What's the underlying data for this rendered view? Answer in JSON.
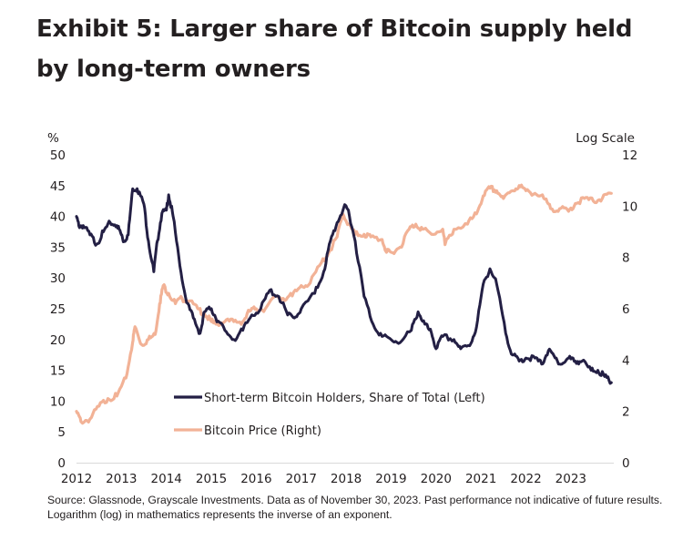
{
  "title": "Exhibit 5: Larger share of Bitcoin supply held by long-term owners",
  "source": "Source: Glassnode, Grayscale Investments. Data as of November 30, 2023. Past performance not indicative of future results. Logarithm (log) in mathematics represents the inverse of an exponent.",
  "colors": {
    "sth_share": "#231f44",
    "price": "#f2b296",
    "axis_line": "#d9d9d9",
    "text": "#231f20"
  },
  "chart_data": {
    "type": "line",
    "title": "Exhibit 5: Larger share of Bitcoin supply held by long-term owners",
    "xlabel": "",
    "ylabel_left": "%",
    "ylabel_right": "Log Scale",
    "x_ticks": [
      "2012",
      "2013",
      "2014",
      "2015",
      "2016",
      "2017",
      "2018",
      "2019",
      "2020",
      "2021",
      "2022",
      "2023"
    ],
    "xlim": [
      2012,
      2023.92
    ],
    "ylim_left": [
      0,
      50
    ],
    "ylim_right": [
      0,
      12
    ],
    "y_ticks_left": [
      "0",
      "5",
      "10",
      "15",
      "20",
      "25",
      "30",
      "35",
      "40",
      "45",
      "50"
    ],
    "y_ticks_right": [
      "0",
      "2",
      "4",
      "6",
      "8",
      "10",
      "12"
    ],
    "grid": false,
    "legend_position": "bottom-center",
    "series": [
      {
        "name": "Short-term Bitcoin Holders, Share of Total (Left)",
        "axis": "left",
        "x": [
          2012.0,
          2012.05,
          2012.15,
          2012.3,
          2012.45,
          2012.6,
          2012.75,
          2012.9,
          2013.0,
          2013.05,
          2013.15,
          2013.25,
          2013.35,
          2013.5,
          2013.6,
          2013.72,
          2013.8,
          2013.9,
          2014.0,
          2014.05,
          2014.15,
          2014.3,
          2014.45,
          2014.6,
          2014.75,
          2014.85,
          2015.0,
          2015.15,
          2015.3,
          2015.5,
          2015.7,
          2015.9,
          2016.1,
          2016.3,
          2016.5,
          2016.7,
          2016.85,
          2017.0,
          2017.3,
          2017.5,
          2017.65,
          2017.8,
          2017.95,
          2018.05,
          2018.2,
          2018.4,
          2018.6,
          2018.8,
          2019.0,
          2019.2,
          2019.45,
          2019.6,
          2019.75,
          2019.9,
          2020.0,
          2020.15,
          2020.4,
          2020.55,
          2020.75,
          2020.9,
          2021.05,
          2021.2,
          2021.35,
          2021.55,
          2021.7,
          2021.85,
          2022.0,
          2022.2,
          2022.35,
          2022.5,
          2022.65,
          2022.8,
          2022.95,
          2023.1,
          2023.25,
          2023.45,
          2023.6,
          2023.75,
          2023.9
        ],
        "values": [
          40,
          38.5,
          38.5,
          37,
          35.5,
          37.5,
          39,
          38.5,
          37,
          36,
          37,
          44.5,
          44.5,
          42,
          36,
          31,
          36,
          40.5,
          41,
          43.5,
          40,
          32,
          26,
          23.5,
          21,
          24.5,
          25,
          23,
          21.5,
          20,
          21.5,
          24,
          25,
          28,
          27,
          24,
          23.5,
          25,
          27.5,
          31,
          36,
          39,
          41.5,
          41,
          36,
          27,
          22.5,
          20.5,
          20,
          19.5,
          21.5,
          24.5,
          22.5,
          21,
          18.5,
          20.5,
          20,
          18.5,
          19,
          22,
          29,
          31.5,
          29,
          21,
          17.5,
          16.5,
          17,
          17,
          16,
          18.2,
          17,
          16,
          17,
          16.5,
          16.5,
          15,
          15,
          14,
          13
        ]
      },
      {
        "name": "Bitcoin Price (Right)",
        "axis": "right",
        "x": [
          2012.0,
          2012.1,
          2012.3,
          2012.5,
          2012.7,
          2012.9,
          2013.1,
          2013.25,
          2013.3,
          2013.45,
          2013.6,
          2013.75,
          2013.85,
          2013.93,
          2014.05,
          2014.2,
          2014.35,
          2014.5,
          2014.7,
          2014.85,
          2015.0,
          2015.1,
          2015.3,
          2015.5,
          2015.7,
          2015.85,
          2016.0,
          2016.2,
          2016.45,
          2016.6,
          2016.8,
          2017.0,
          2017.2,
          2017.45,
          2017.65,
          2017.8,
          2017.93,
          2018.05,
          2018.2,
          2018.4,
          2018.55,
          2018.8,
          2018.9,
          2019.0,
          2019.2,
          2019.4,
          2019.55,
          2019.7,
          2019.9,
          2020.15,
          2020.2,
          2020.4,
          2020.7,
          2020.9,
          2021.05,
          2021.2,
          2021.35,
          2021.5,
          2021.7,
          2021.85,
          2022.0,
          2022.2,
          2022.4,
          2022.55,
          2022.75,
          2022.95,
          2023.1,
          2023.3,
          2023.5,
          2023.7,
          2023.9
        ],
        "values": [
          2.0,
          1.6,
          1.7,
          2.2,
          2.5,
          2.6,
          3.3,
          4.7,
          5.3,
          4.6,
          4.8,
          5.0,
          6.2,
          6.9,
          6.6,
          6.2,
          6.4,
          6.3,
          6.0,
          5.8,
          5.5,
          5.4,
          5.5,
          5.5,
          5.5,
          5.9,
          6.0,
          6.0,
          6.5,
          6.4,
          6.5,
          6.9,
          7.0,
          7.8,
          8.3,
          8.8,
          9.7,
          9.3,
          8.9,
          8.9,
          8.8,
          8.7,
          8.2,
          8.2,
          8.4,
          9.1,
          9.3,
          9.1,
          8.9,
          9.1,
          8.5,
          9.1,
          9.3,
          9.7,
          10.4,
          10.7,
          10.6,
          10.3,
          10.6,
          10.8,
          10.6,
          10.5,
          10.3,
          9.9,
          9.9,
          9.8,
          10.1,
          10.3,
          10.2,
          10.3,
          10.5
        ]
      }
    ]
  }
}
